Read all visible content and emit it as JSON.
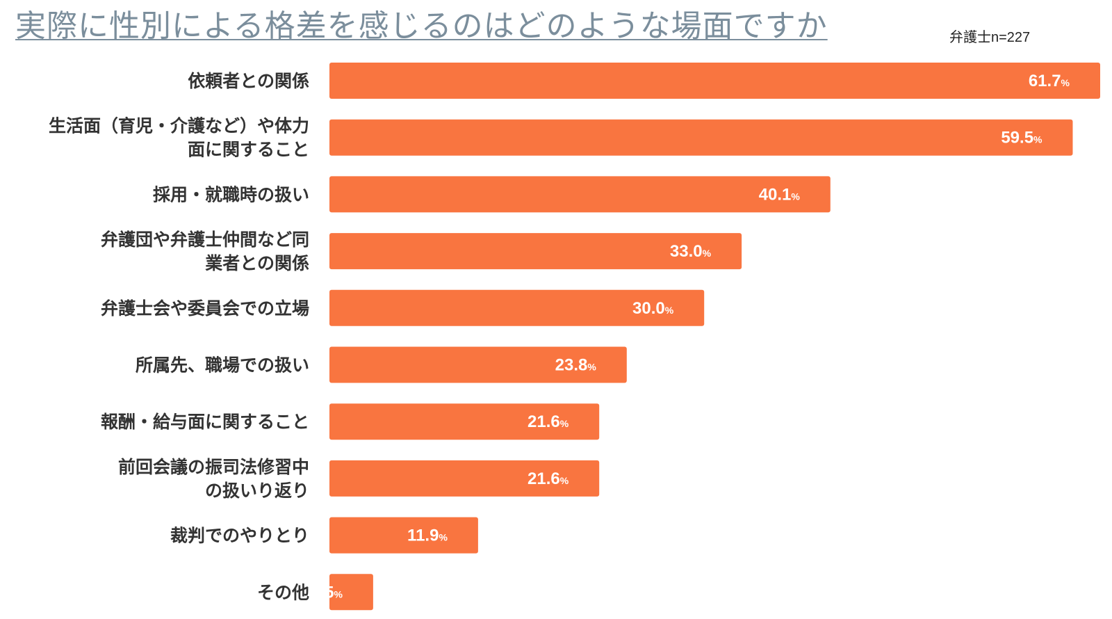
{
  "chart_data": {
    "type": "bar",
    "orientation": "horizontal",
    "title": "実際に性別による格差を感じるのはどのような場面ですか",
    "sample_note": "弁護士n=227",
    "unit": "%",
    "bar_color": "#f97540",
    "xlim": [
      0,
      61.7
    ],
    "grid": false,
    "legend": "none",
    "categories": [
      "依頼者との関係",
      "生活面（育児・介護など）や体力\n面に関すること",
      "採用・就職時の扱い",
      "弁護団や弁護士仲間など同\n業者との関係",
      "弁護士会や委員会での立場",
      "所属先、職場での扱い",
      "報酬・給与面に関すること",
      "前回会議の振司法修習中\nの扱いり返り",
      "裁判でのやりとり",
      "その他"
    ],
    "values": [
      61.7,
      59.5,
      40.1,
      33.0,
      30.0,
      23.8,
      21.6,
      21.6,
      11.9,
      3.5
    ],
    "value_labels": [
      "61.7",
      "59.5",
      "40.1",
      "33.0",
      "30.0",
      "23.8",
      "21.6",
      "21.6",
      "11.9",
      "3.5"
    ]
  }
}
